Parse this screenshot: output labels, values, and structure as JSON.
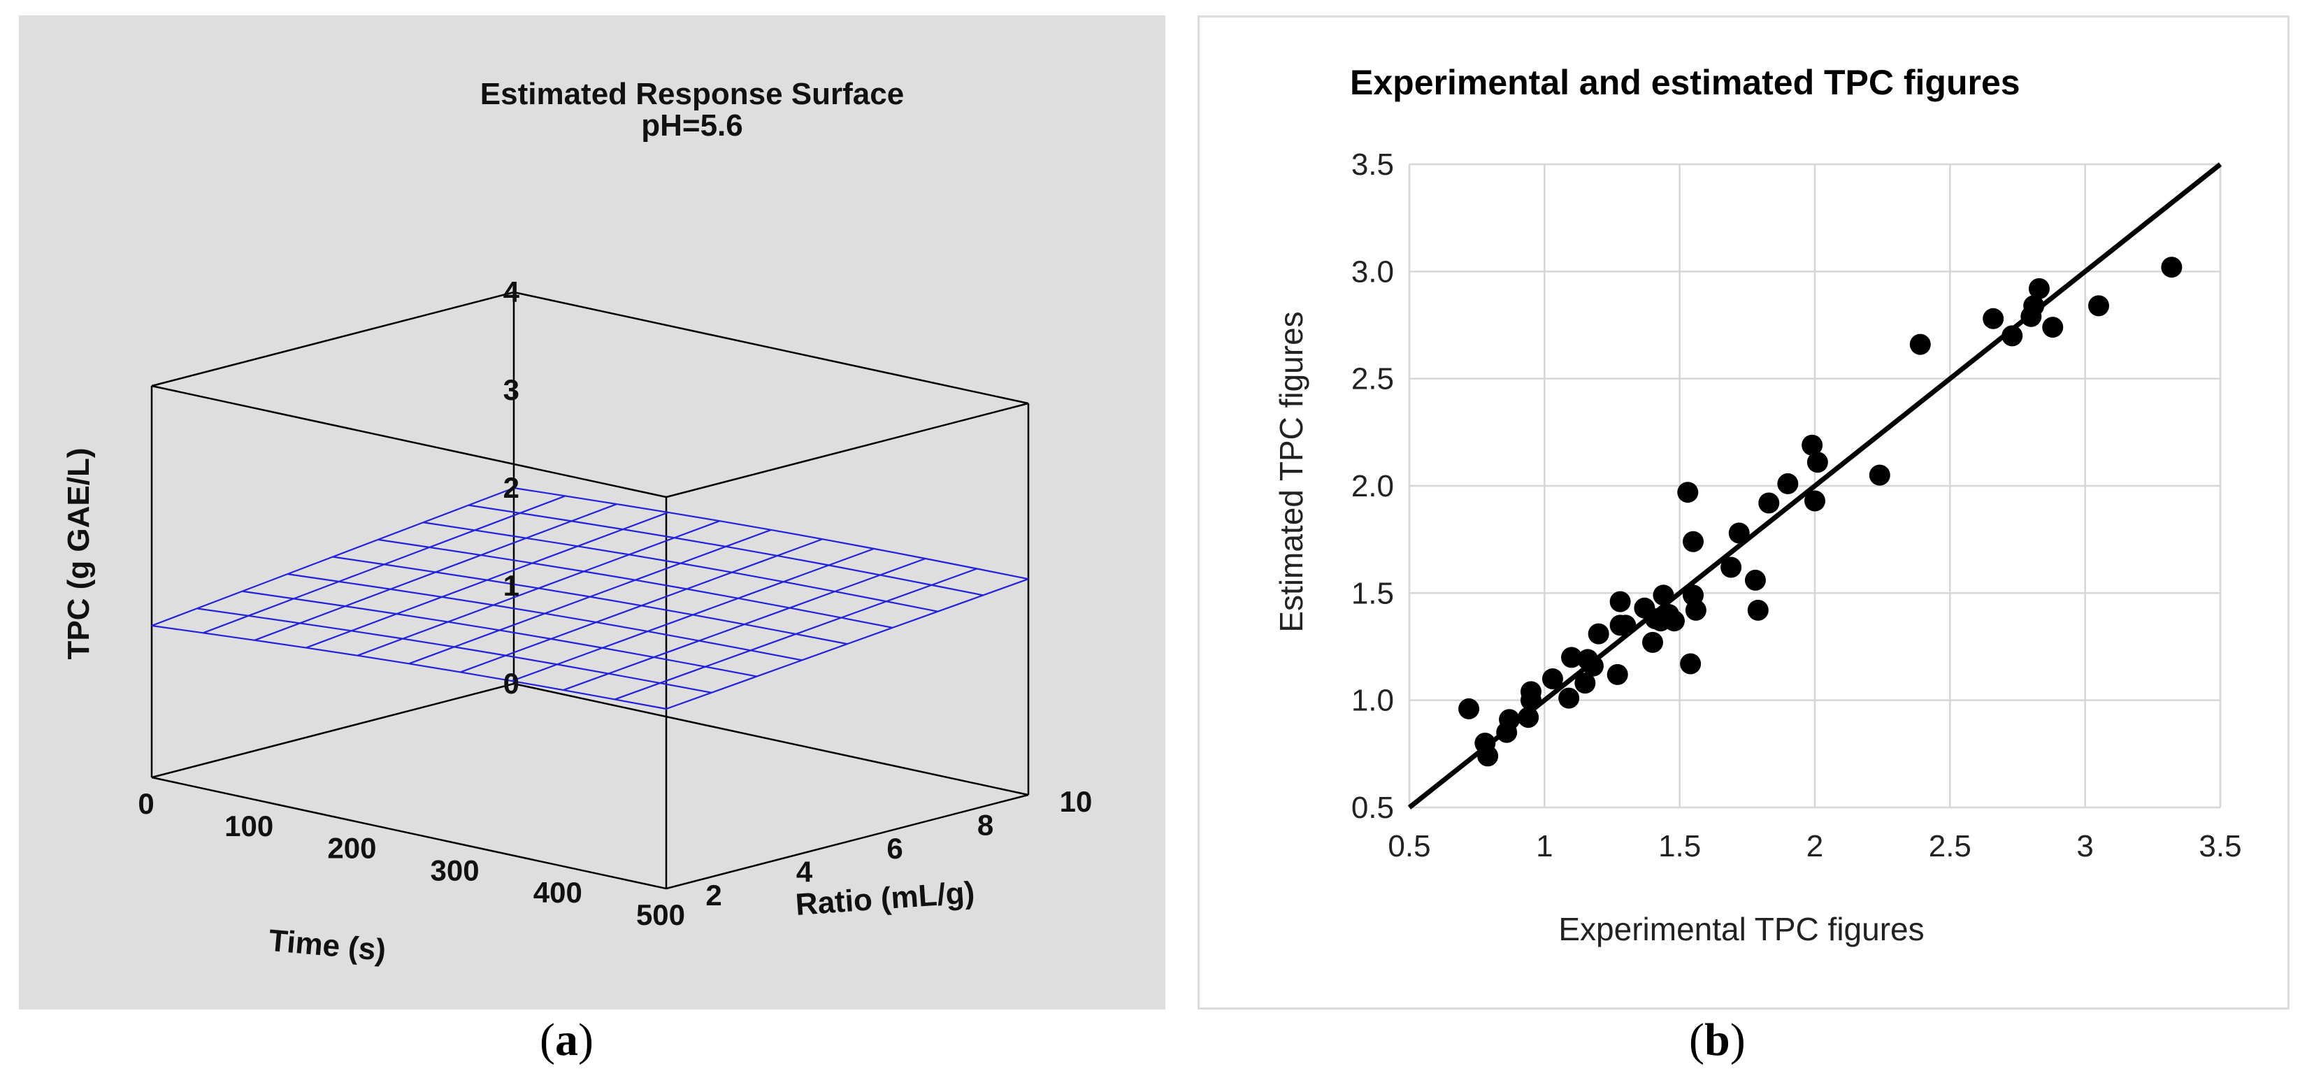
{
  "figure": {
    "panel_a_label": "a",
    "panel_b_label": "b"
  },
  "chart_data": [
    {
      "type": "surface3d",
      "title": "Estimated Response Surface",
      "subtitle": "pH=5.6",
      "zlabel": "TPC (g GAE/L)",
      "xlabel": "Time (s)",
      "ylabel": "Ratio (mL/g)",
      "xlim": [
        0,
        500
      ],
      "ylim": [
        2,
        10
      ],
      "zlim": [
        0,
        4
      ],
      "xticks": [
        "0",
        "100",
        "200",
        "300",
        "400",
        "500"
      ],
      "yticks": [
        "2",
        "4",
        "6",
        "8",
        "10"
      ],
      "zticks": [
        "0",
        "1",
        "2",
        "3",
        "4"
      ],
      "surface_color": "#2222dd",
      "grid": {
        "time": [
          0,
          50,
          100,
          150,
          200,
          250,
          300,
          350,
          400,
          450,
          500
        ],
        "ratio": [
          2,
          3,
          4,
          5,
          6,
          7,
          8,
          9,
          10
        ],
        "note": "TPC rises with time and ratio, from about 1.55 (t=0, ratio 2) to about 2.25 (t=500, ratio 10)"
      }
    },
    {
      "type": "scatter",
      "title": "Experimental and estimated TPC figures",
      "xlabel": "Experimental TPC figures",
      "ylabel": "Estimated TPC figures",
      "xlim": [
        0.5,
        3.5
      ],
      "ylim": [
        0.5,
        3.5
      ],
      "xticks": [
        "0.5",
        "1",
        "1.5",
        "2",
        "2.5",
        "3",
        "3.5"
      ],
      "yticks": [
        "0.5",
        "1.0",
        "1.5",
        "2.0",
        "2.5",
        "3.0",
        "3.5"
      ],
      "fit_line": {
        "x": [
          0.5,
          3.5
        ],
        "y": [
          0.5,
          3.5
        ]
      },
      "x": [
        0.72,
        0.78,
        0.79,
        0.86,
        0.87,
        0.94,
        0.95,
        0.95,
        1.03,
        1.09,
        1.1,
        1.15,
        1.16,
        1.18,
        1.2,
        1.27,
        1.28,
        1.28,
        1.3,
        1.37,
        1.4,
        1.41,
        1.43,
        1.44,
        1.46,
        1.48,
        1.53,
        1.54,
        1.55,
        1.55,
        1.56,
        1.69,
        1.72,
        1.78,
        1.79,
        1.83,
        1.9,
        1.99,
        2.0,
        2.01,
        2.24,
        2.39,
        2.66,
        2.73,
        2.8,
        2.81,
        2.83,
        2.88,
        3.05,
        3.32
      ],
      "y": [
        0.96,
        0.8,
        0.74,
        0.85,
        0.91,
        0.92,
        1.0,
        1.04,
        1.1,
        1.01,
        1.2,
        1.08,
        1.19,
        1.16,
        1.31,
        1.12,
        1.35,
        1.46,
        1.35,
        1.43,
        1.27,
        1.38,
        1.37,
        1.49,
        1.4,
        1.37,
        1.97,
        1.17,
        1.74,
        1.49,
        1.42,
        1.62,
        1.78,
        1.56,
        1.42,
        1.92,
        2.01,
        2.19,
        1.93,
        2.11,
        2.05,
        2.66,
        2.78,
        2.7,
        2.79,
        2.84,
        2.92,
        2.74,
        2.84,
        3.02
      ]
    }
  ]
}
